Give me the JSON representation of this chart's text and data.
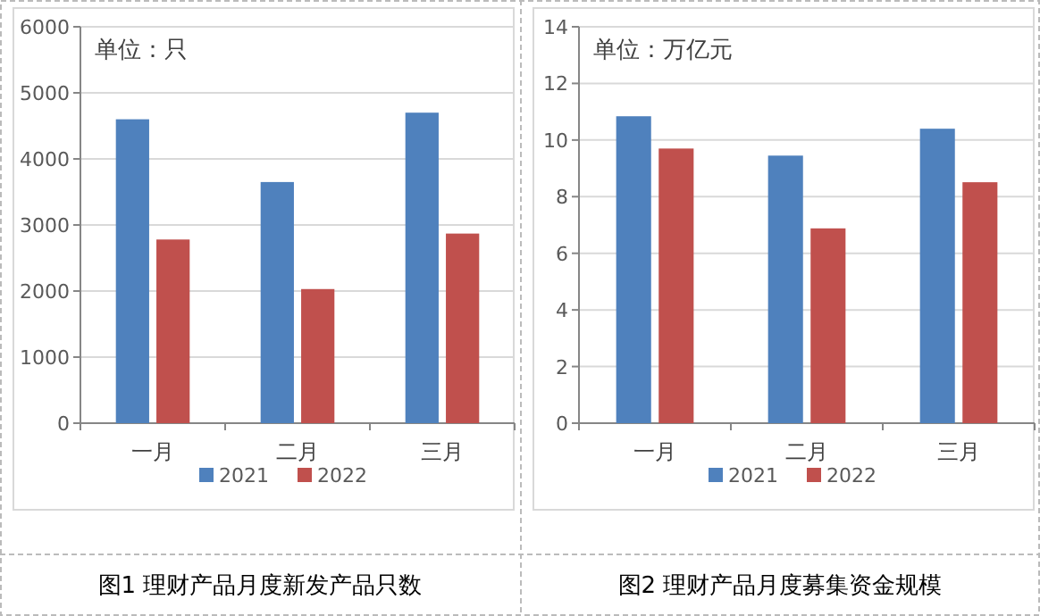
{
  "chart_data": [
    {
      "type": "bar",
      "title": "图1  理财产品月度新发产品只数",
      "annotations": [
        "单位：只"
      ],
      "categories": [
        "一月",
        "二月",
        "三月"
      ],
      "series": [
        {
          "name": "2021",
          "color": "#4f81bd",
          "values": [
            4600,
            3650,
            4700
          ]
        },
        {
          "name": "2022",
          "color": "#c0504d",
          "values": [
            2780,
            2030,
            2870
          ]
        }
      ],
      "ylim": [
        0,
        6000
      ],
      "yticks": [
        0,
        1000,
        2000,
        3000,
        4000,
        5000,
        6000
      ],
      "grid": "y",
      "legend": "bottom"
    },
    {
      "type": "bar",
      "title": "图2  理财产品月度募集资金规模",
      "annotations": [
        "单位：万亿元"
      ],
      "categories": [
        "一月",
        "二月",
        "三月"
      ],
      "series": [
        {
          "name": "2021",
          "color": "#4f81bd",
          "values": [
            10.84,
            9.45,
            10.4
          ]
        },
        {
          "name": "2022",
          "color": "#c0504d",
          "values": [
            9.7,
            6.88,
            8.51
          ]
        }
      ],
      "ylim": [
        0,
        14
      ],
      "yticks": [
        0,
        2,
        4,
        6,
        8,
        10,
        12,
        14
      ],
      "grid": "y",
      "legend": "bottom"
    }
  ]
}
